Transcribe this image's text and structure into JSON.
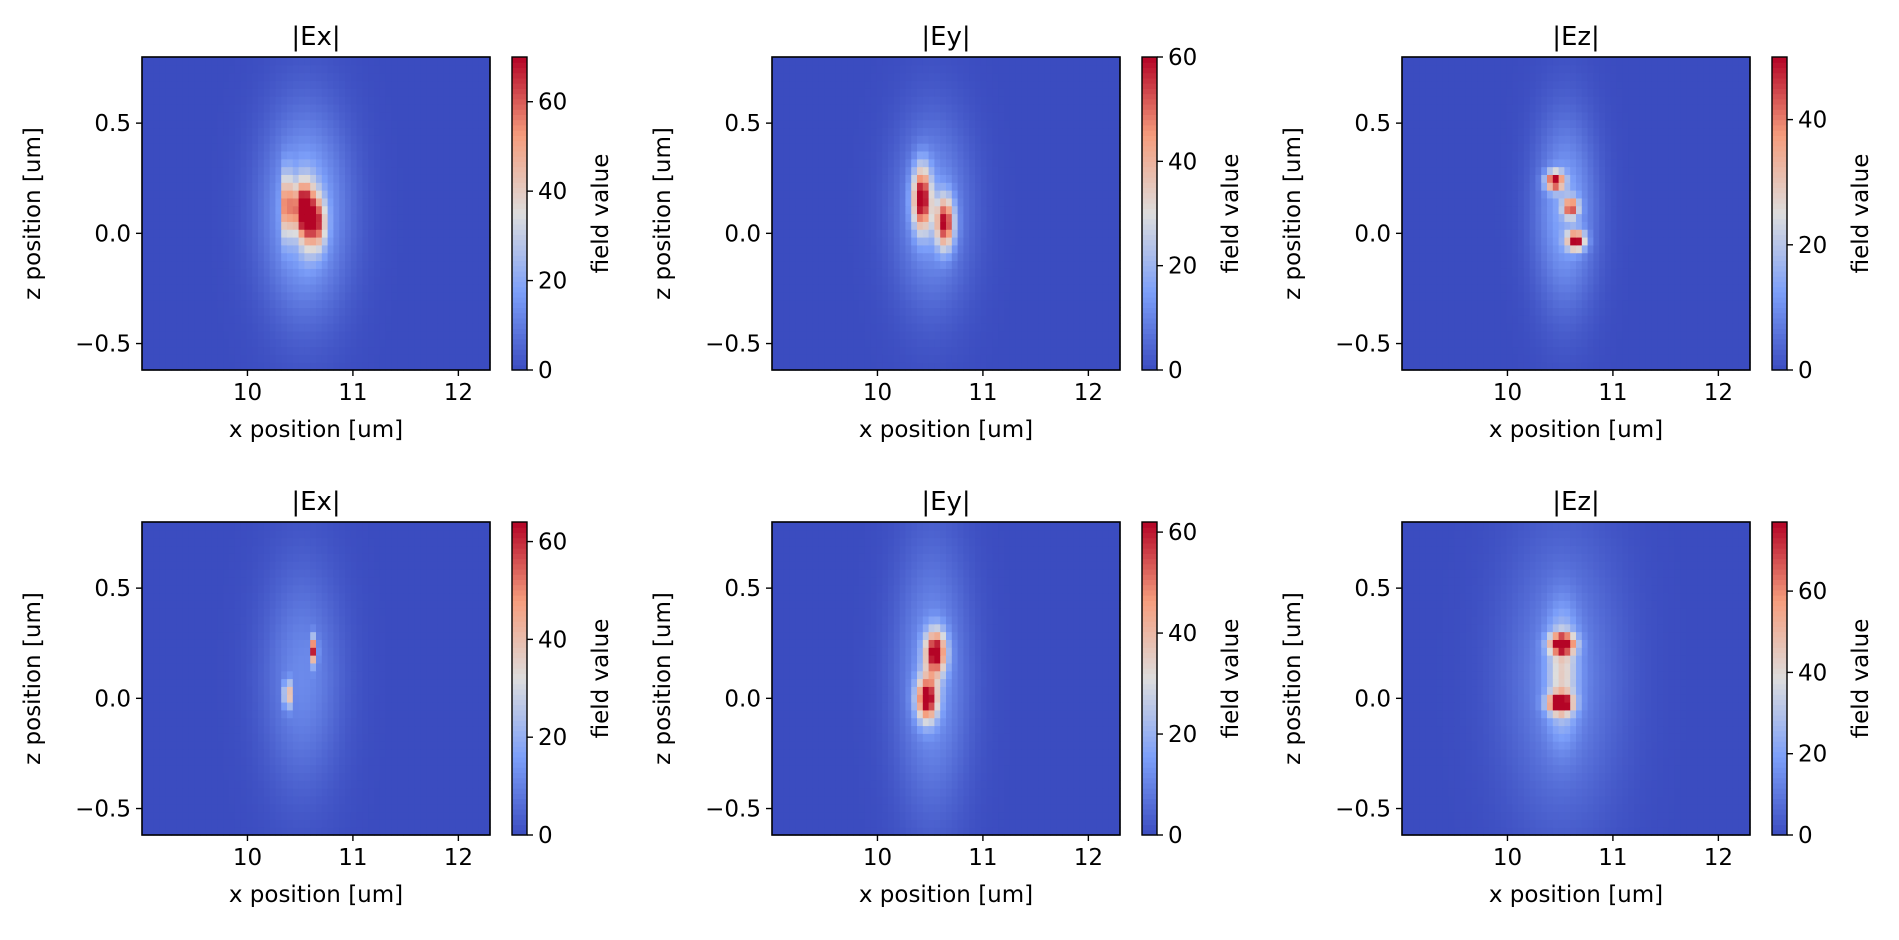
{
  "chart_data": [
    {
      "type": "heatmap",
      "title": "|Ex|",
      "xlabel": "x position [um]",
      "ylabel": "z position [um]",
      "colorbar_label": "field value",
      "colormap": "coolwarm",
      "xlim": [
        9.0,
        12.3
      ],
      "ylim": [
        -0.62,
        0.8
      ],
      "xticks": [
        10,
        11,
        12
      ],
      "yticks": [
        -0.5,
        0.0,
        0.5
      ],
      "xtick_labels": [
        "10",
        "11",
        "12"
      ],
      "ytick_labels": [
        "−0.5",
        "0.0",
        "0.5"
      ],
      "vmin": 0,
      "vmax": 70,
      "colorbar_ticks": [
        0,
        20,
        40,
        60
      ],
      "colorbar_tick_labels": [
        "0",
        "20",
        "40",
        "60"
      ],
      "features": [
        {
          "x": 10.55,
          "z": 0.1,
          "sx": 0.28,
          "sz": 0.32,
          "amp": 22
        },
        {
          "x": 10.37,
          "z": 0.13,
          "sx": 0.03,
          "sz": 0.1,
          "amp": 48
        },
        {
          "x": 10.5,
          "z": 0.12,
          "sx": 0.06,
          "sz": 0.08,
          "amp": 40
        },
        {
          "x": 10.58,
          "z": 0.08,
          "sx": 0.06,
          "sz": 0.1,
          "amp": 45
        },
        {
          "x": 10.68,
          "z": 0.05,
          "sx": 0.05,
          "sz": 0.08,
          "amp": 35
        }
      ]
    },
    {
      "type": "heatmap",
      "title": "|Ey|",
      "xlabel": "x position [um]",
      "ylabel": "z position [um]",
      "colorbar_label": "field value",
      "colormap": "coolwarm",
      "xlim": [
        9.0,
        12.3
      ],
      "ylim": [
        -0.62,
        0.8
      ],
      "xticks": [
        10,
        11,
        12
      ],
      "yticks": [
        -0.5,
        0.0,
        0.5
      ],
      "xtick_labels": [
        "10",
        "11",
        "12"
      ],
      "ytick_labels": [
        "−0.5",
        "0.0",
        "0.5"
      ],
      "vmin": 0,
      "vmax": 60,
      "colorbar_ticks": [
        0,
        20,
        40,
        60
      ],
      "colorbar_tick_labels": [
        "0",
        "20",
        "40",
        "60"
      ],
      "features": [
        {
          "x": 10.52,
          "z": 0.1,
          "sx": 0.25,
          "sz": 0.3,
          "amp": 14
        },
        {
          "x": 10.42,
          "z": 0.16,
          "sx": 0.06,
          "sz": 0.1,
          "amp": 54
        },
        {
          "x": 10.64,
          "z": 0.05,
          "sx": 0.06,
          "sz": 0.08,
          "amp": 50
        }
      ]
    },
    {
      "type": "heatmap",
      "title": "|Ez|",
      "xlabel": "x position [um]",
      "ylabel": "z position [um]",
      "colorbar_label": "field value",
      "colormap": "coolwarm",
      "xlim": [
        9.0,
        12.3
      ],
      "ylim": [
        -0.62,
        0.8
      ],
      "xticks": [
        10,
        11,
        12
      ],
      "yticks": [
        -0.5,
        0.0,
        0.5
      ],
      "xtick_labels": [
        "10",
        "11",
        "12"
      ],
      "ytick_labels": [
        "−0.5",
        "0.0",
        "0.5"
      ],
      "vmin": 0,
      "vmax": 50,
      "colorbar_ticks": [
        0,
        20,
        40
      ],
      "colorbar_tick_labels": [
        "0",
        "20",
        "40"
      ],
      "features": [
        {
          "x": 10.55,
          "z": 0.1,
          "sx": 0.2,
          "sz": 0.3,
          "amp": 14
        },
        {
          "x": 10.45,
          "z": 0.24,
          "sx": 0.06,
          "sz": 0.03,
          "amp": 44
        },
        {
          "x": 10.6,
          "z": 0.12,
          "sx": 0.05,
          "sz": 0.03,
          "amp": 36
        },
        {
          "x": 10.65,
          "z": -0.03,
          "sx": 0.06,
          "sz": 0.03,
          "amp": 44
        }
      ]
    },
    {
      "type": "heatmap",
      "title": "|Ex|",
      "xlabel": "x position [um]",
      "ylabel": "z position [um]",
      "colorbar_label": "field value",
      "colormap": "coolwarm",
      "xlim": [
        9.0,
        12.3
      ],
      "ylim": [
        -0.62,
        0.8
      ],
      "xticks": [
        10,
        11,
        12
      ],
      "yticks": [
        -0.5,
        0.0,
        0.5
      ],
      "xtick_labels": [
        "10",
        "11",
        "12"
      ],
      "ytick_labels": [
        "−0.5",
        "0.0",
        "0.5"
      ],
      "vmin": 0,
      "vmax": 64,
      "colorbar_ticks": [
        0,
        20,
        40,
        60
      ],
      "colorbar_tick_labels": [
        "0",
        "20",
        "40",
        "60"
      ],
      "features": [
        {
          "x": 10.52,
          "z": 0.1,
          "sx": 0.26,
          "sz": 0.35,
          "amp": 12
        },
        {
          "x": 10.38,
          "z": 0.02,
          "sx": 0.02,
          "sz": 0.04,
          "amp": 58
        },
        {
          "x": 10.63,
          "z": 0.22,
          "sx": 0.02,
          "sz": 0.04,
          "amp": 55
        }
      ]
    },
    {
      "type": "heatmap",
      "title": "|Ey|",
      "xlabel": "x position [um]",
      "ylabel": "z position [um]",
      "colorbar_label": "field value",
      "colormap": "coolwarm",
      "xlim": [
        9.0,
        12.3
      ],
      "ylim": [
        -0.62,
        0.8
      ],
      "xticks": [
        10,
        11,
        12
      ],
      "yticks": [
        -0.5,
        0.0,
        0.5
      ],
      "xtick_labels": [
        "10",
        "11",
        "12"
      ],
      "ytick_labels": [
        "−0.5",
        "0.0",
        "0.5"
      ],
      "vmin": 0,
      "vmax": 62,
      "colorbar_ticks": [
        0,
        20,
        40,
        60
      ],
      "colorbar_tick_labels": [
        "0",
        "20",
        "40",
        "60"
      ],
      "features": [
        {
          "x": 10.52,
          "z": 0.1,
          "sx": 0.24,
          "sz": 0.42,
          "amp": 14
        },
        {
          "x": 10.55,
          "z": 0.21,
          "sx": 0.07,
          "sz": 0.07,
          "amp": 56
        },
        {
          "x": 10.47,
          "z": 0.0,
          "sx": 0.07,
          "sz": 0.07,
          "amp": 56
        }
      ]
    },
    {
      "type": "heatmap",
      "title": "|Ez|",
      "xlabel": "x position [um]",
      "ylabel": "z position [um]",
      "colorbar_label": "field value",
      "colormap": "coolwarm",
      "xlim": [
        9.0,
        12.3
      ],
      "ylim": [
        -0.62,
        0.8
      ],
      "xticks": [
        10,
        11,
        12
      ],
      "yticks": [
        -0.5,
        0.0,
        0.5
      ],
      "xtick_labels": [
        "10",
        "11",
        "12"
      ],
      "ytick_labels": [
        "−0.5",
        "0.0",
        "0.5"
      ],
      "vmin": 0,
      "vmax": 77,
      "colorbar_ticks": [
        0,
        20,
        40,
        60
      ],
      "colorbar_tick_labels": [
        "0",
        "20",
        "40",
        "60"
      ],
      "features": [
        {
          "x": 10.52,
          "z": 0.1,
          "sx": 0.38,
          "sz": 0.45,
          "amp": 14
        },
        {
          "x": 10.52,
          "z": 0.12,
          "sx": 0.1,
          "sz": 0.18,
          "amp": 30
        },
        {
          "x": 10.52,
          "z": 0.25,
          "sx": 0.08,
          "sz": 0.03,
          "amp": 72
        },
        {
          "x": 10.5,
          "z": -0.02,
          "sx": 0.08,
          "sz": 0.03,
          "amp": 72
        }
      ]
    }
  ]
}
